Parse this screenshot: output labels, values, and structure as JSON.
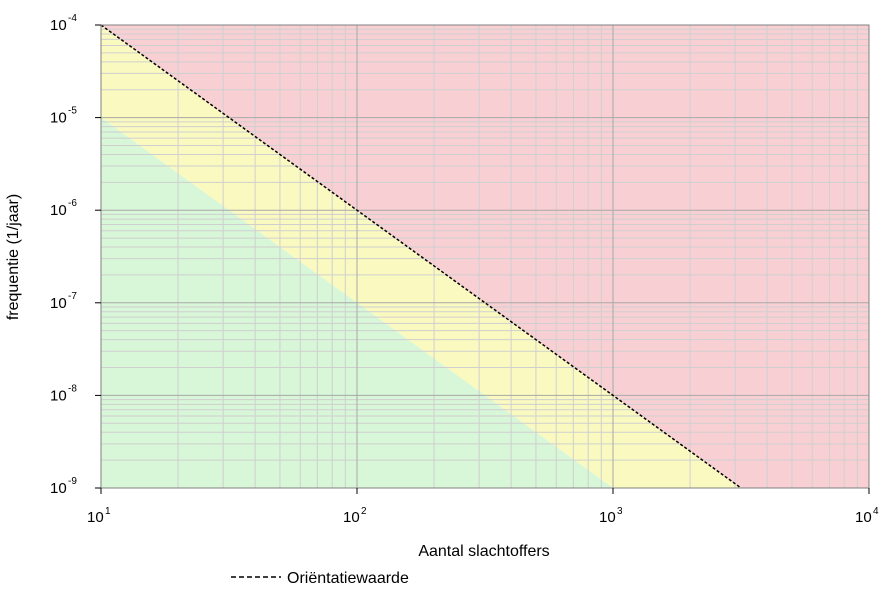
{
  "chart_data": {
    "type": "line",
    "xlabel": "Aantal slachtoffers",
    "ylabel": "frequentie (1/jaar)",
    "xscale": "log",
    "yscale": "log",
    "xlim": [
      10,
      10000
    ],
    "ylim": [
      1e-09,
      0.0001
    ],
    "x_ticks": [
      {
        "base": "10",
        "exp": "1",
        "value": 10
      },
      {
        "base": "10",
        "exp": "2",
        "value": 100
      },
      {
        "base": "10",
        "exp": "3",
        "value": 1000
      },
      {
        "base": "10",
        "exp": "4",
        "value": 10000
      }
    ],
    "y_ticks": [
      {
        "base": "10",
        "exp": "-4",
        "value": 0.0001
      },
      {
        "base": "10",
        "exp": "-5",
        "value": 1e-05
      },
      {
        "base": "10",
        "exp": "-6",
        "value": 1e-06
      },
      {
        "base": "10",
        "exp": "-7",
        "value": 1e-07
      },
      {
        "base": "10",
        "exp": "-8",
        "value": 1e-08
      },
      {
        "base": "10",
        "exp": "-9",
        "value": 1e-09
      }
    ],
    "grid": true,
    "series": [
      {
        "name": "Oriëntatiewaarde",
        "style": "dashed",
        "color": "#000000",
        "x": [
          10,
          100,
          1000,
          3162
        ],
        "y": [
          0.0001,
          1e-06,
          1e-08,
          1e-09
        ]
      }
    ],
    "regions": [
      {
        "color": "#f8d0d4",
        "area": "above the oriëntatiewaarde line"
      },
      {
        "color": "#fafac0",
        "area": "between the oriëntatiewaarde line and 1/10 of it"
      },
      {
        "color": "#d8f6d8",
        "area": "below 1/10 of the oriëntatiewaarde line"
      }
    ],
    "legend": {
      "position": "bottom-left",
      "label": "Oriëntatiewaarde"
    }
  }
}
